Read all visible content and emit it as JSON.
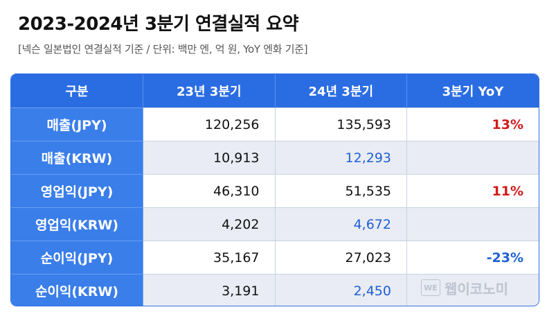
{
  "title": "2023-2024년 3분기 연결실적 요약",
  "subtitle": "[넥슨 일본법인 연결실적 기준 / 단위: 백만 엔, 억 원, YoY 엔화 기준]",
  "table": {
    "headers": [
      "구분",
      "23년 3분기",
      "24년 3분기",
      "3분기 YoY"
    ],
    "rows": [
      {
        "label": "매출(JPY)",
        "q3_2023": "120,256",
        "q3_2024": "135,593",
        "yoy": "13%"
      },
      {
        "label": "매출(KRW)",
        "q3_2023": "10,913",
        "q3_2024": "12,293",
        "yoy": ""
      },
      {
        "label": "영업익(JPY)",
        "q3_2023": "46,310",
        "q3_2024": "51,535",
        "yoy": "11%"
      },
      {
        "label": "영업익(KRW)",
        "q3_2023": "4,202",
        "q3_2024": "4,672",
        "yoy": ""
      },
      {
        "label": "순이익(JPY)",
        "q3_2023": "35,167",
        "q3_2024": "27,023",
        "yoy": "-23%"
      },
      {
        "label": "순이익(KRW)",
        "q3_2023": "3,191",
        "q3_2024": "2,450",
        "yoy": ""
      }
    ]
  },
  "colors": {
    "header_bg": "#2a6de3",
    "label_bg": "#3a7ee9",
    "positive": "#d11a1a",
    "negative": "#1e5fd6",
    "krw_value": "#1e5fd6"
  },
  "watermark": {
    "badge": "WE",
    "text": "웹이코노미"
  }
}
